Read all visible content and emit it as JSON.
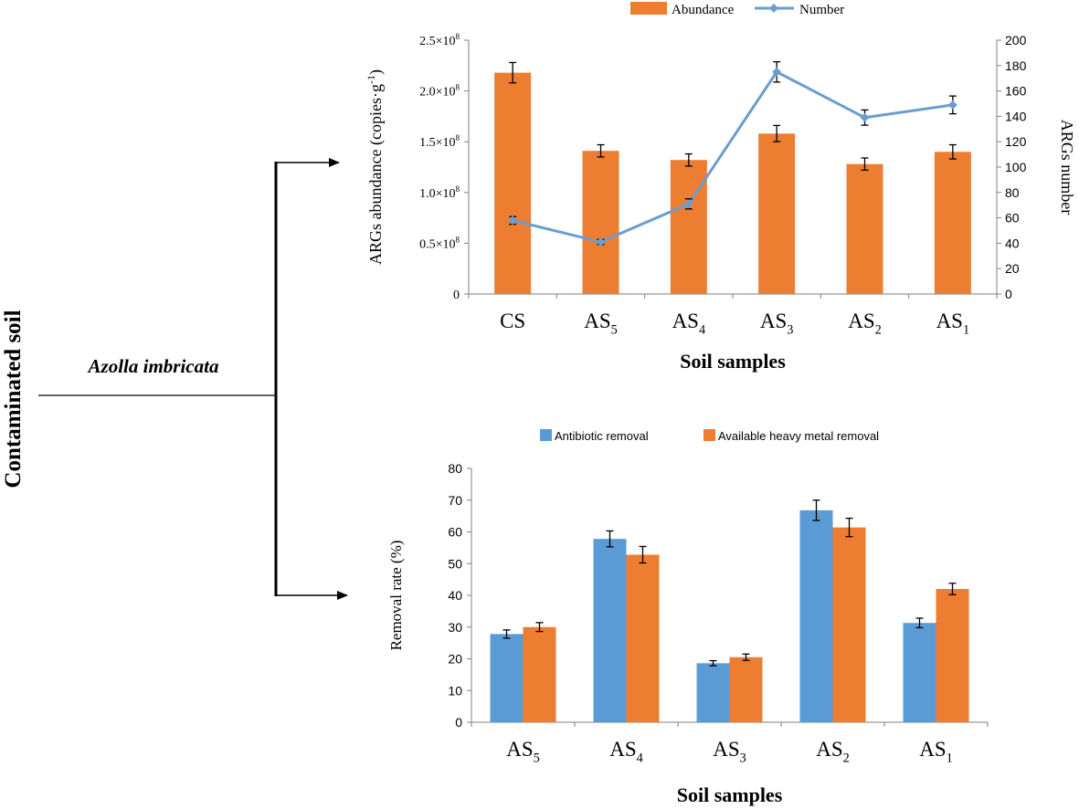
{
  "diagram": {
    "side_label": "Contaminated soil",
    "branch_label": "Azolla imbricata"
  },
  "colors": {
    "orange": "#ED7D31",
    "blue": "#5B9BD5",
    "line": "#6A9ECF",
    "axis": "#808080"
  },
  "chart_data": [
    {
      "type": "bar",
      "categories": [
        "CS",
        "AS5",
        "AS4",
        "AS3",
        "AS2",
        "AS1"
      ],
      "category_labels": [
        {
          "base": "CS",
          "sub": ""
        },
        {
          "base": "AS",
          "sub": "5"
        },
        {
          "base": "AS",
          "sub": "4"
        },
        {
          "base": "AS",
          "sub": "3"
        },
        {
          "base": "AS",
          "sub": "2"
        },
        {
          "base": "AS",
          "sub": "1"
        }
      ],
      "series": [
        {
          "name": "Abundance",
          "kind": "bar",
          "axis": "left",
          "values": [
            218000000,
            141000000,
            132000000,
            158000000,
            128000000,
            140000000
          ],
          "errors": [
            10000000,
            6000000,
            6000000,
            8000000,
            6000000,
            7000000
          ]
        },
        {
          "name": "Number",
          "kind": "line",
          "axis": "right",
          "values": [
            58,
            41,
            71,
            175,
            139,
            149
          ],
          "errors": [
            3,
            2,
            4,
            8,
            6,
            7
          ]
        }
      ],
      "xlabel": "Soil samples",
      "ylabel": "ARGs abundance (copies·g",
      "ylabel_sup": "-1",
      "ylabel_end": ")",
      "y2label": "ARGs number",
      "ylim": [
        0,
        250000000
      ],
      "y2lim": [
        0,
        200
      ],
      "y_ticks": [
        {
          "value": 250000000,
          "base": "2.5×10",
          "sup": "8"
        },
        {
          "value": 200000000,
          "base": "2.0×10",
          "sup": "8"
        },
        {
          "value": 150000000,
          "base": "1.5×10",
          "sup": "8"
        },
        {
          "value": 100000000,
          "base": "1.0×10",
          "sup": "8"
        },
        {
          "value": 50000000,
          "base": "0.5×10",
          "sup": "8"
        },
        {
          "value": 0,
          "base": "0",
          "sup": ""
        }
      ],
      "y2_ticks": [
        0,
        20,
        40,
        60,
        80,
        100,
        120,
        140,
        160,
        180,
        200
      ],
      "legend": "top",
      "grid": false
    },
    {
      "type": "bar",
      "categories": [
        "AS5",
        "AS4",
        "AS3",
        "AS2",
        "AS1"
      ],
      "category_labels": [
        {
          "base": "AS",
          "sub": "5"
        },
        {
          "base": "AS",
          "sub": "4"
        },
        {
          "base": "AS",
          "sub": "3"
        },
        {
          "base": "AS",
          "sub": "2"
        },
        {
          "base": "AS",
          "sub": "1"
        }
      ],
      "series": [
        {
          "name": "Antibiotic removal",
          "values": [
            27.8,
            57.8,
            18.6,
            66.8,
            31.3
          ],
          "errors": [
            1.3,
            2.5,
            0.8,
            3.2,
            1.5
          ]
        },
        {
          "name": "Available heavy metal  removal",
          "values": [
            30.0,
            52.8,
            20.5,
            61.4,
            42.0
          ],
          "errors": [
            1.4,
            2.6,
            1.0,
            2.9,
            1.8
          ]
        }
      ],
      "xlabel": "Soil samples",
      "ylabel": "Removal rate (%)",
      "ylim": [
        0,
        80
      ],
      "y_ticks": [
        0,
        10,
        20,
        30,
        40,
        50,
        60,
        70,
        80
      ],
      "legend": "top",
      "grid": false
    }
  ]
}
